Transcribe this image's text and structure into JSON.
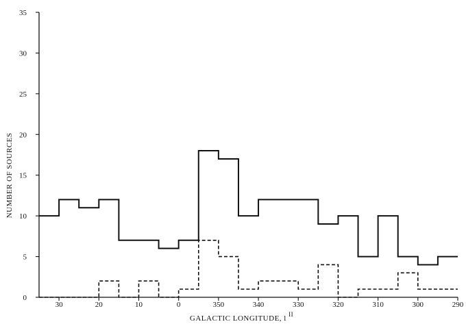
{
  "chart_data": {
    "type": "histogram",
    "title": "",
    "xlabel": "GALACTIC LONGITUDE, l",
    "xlabel_superscript": "II",
    "ylabel": "NUMBER OF SOURCES",
    "x_direction": "decreasing (longitude wraps through 0 to 360)",
    "x_axis_order": [
      35,
      30,
      25,
      20,
      15,
      10,
      5,
      0,
      -5,
      -10,
      -15,
      -20,
      -25,
      -30,
      -35,
      -40,
      -45,
      -50,
      -55,
      -60,
      -65,
      -70
    ],
    "xlim": [
      35,
      -70
    ],
    "x_ticks": [
      {
        "value": 30,
        "label": "30"
      },
      {
        "value": 20,
        "label": "20"
      },
      {
        "value": 10,
        "label": "10"
      },
      {
        "value": 0,
        "label": "0"
      },
      {
        "value": -10,
        "label": "350"
      },
      {
        "value": -20,
        "label": "340"
      },
      {
        "value": -30,
        "label": "330"
      },
      {
        "value": -40,
        "label": "320"
      },
      {
        "value": -50,
        "label": "310"
      },
      {
        "value": -60,
        "label": "300"
      },
      {
        "value": -70,
        "label": "290"
      }
    ],
    "ylim": [
      0,
      35
    ],
    "y_ticks": [
      0,
      5,
      10,
      15,
      20,
      25,
      30,
      35
    ],
    "bin_edges": [
      35,
      30,
      25,
      20,
      15,
      10,
      5,
      0,
      -5,
      -10,
      -15,
      -20,
      -25,
      -30,
      -35,
      -40,
      -45,
      -50,
      -55,
      -60,
      -65,
      -70
    ],
    "series": [
      {
        "style": "solid",
        "values": [
          10,
          12,
          11,
          12,
          7,
          7,
          6,
          7,
          18,
          17,
          10,
          12,
          12,
          12,
          9,
          10,
          5,
          10,
          5,
          4,
          5
        ]
      },
      {
        "style": "dashed",
        "values": [
          0,
          0,
          0,
          2,
          0,
          2,
          0,
          1,
          7,
          5,
          1,
          2,
          2,
          1,
          4,
          0,
          1,
          1,
          3,
          1,
          1
        ]
      }
    ],
    "grid": false,
    "legend": "none"
  }
}
